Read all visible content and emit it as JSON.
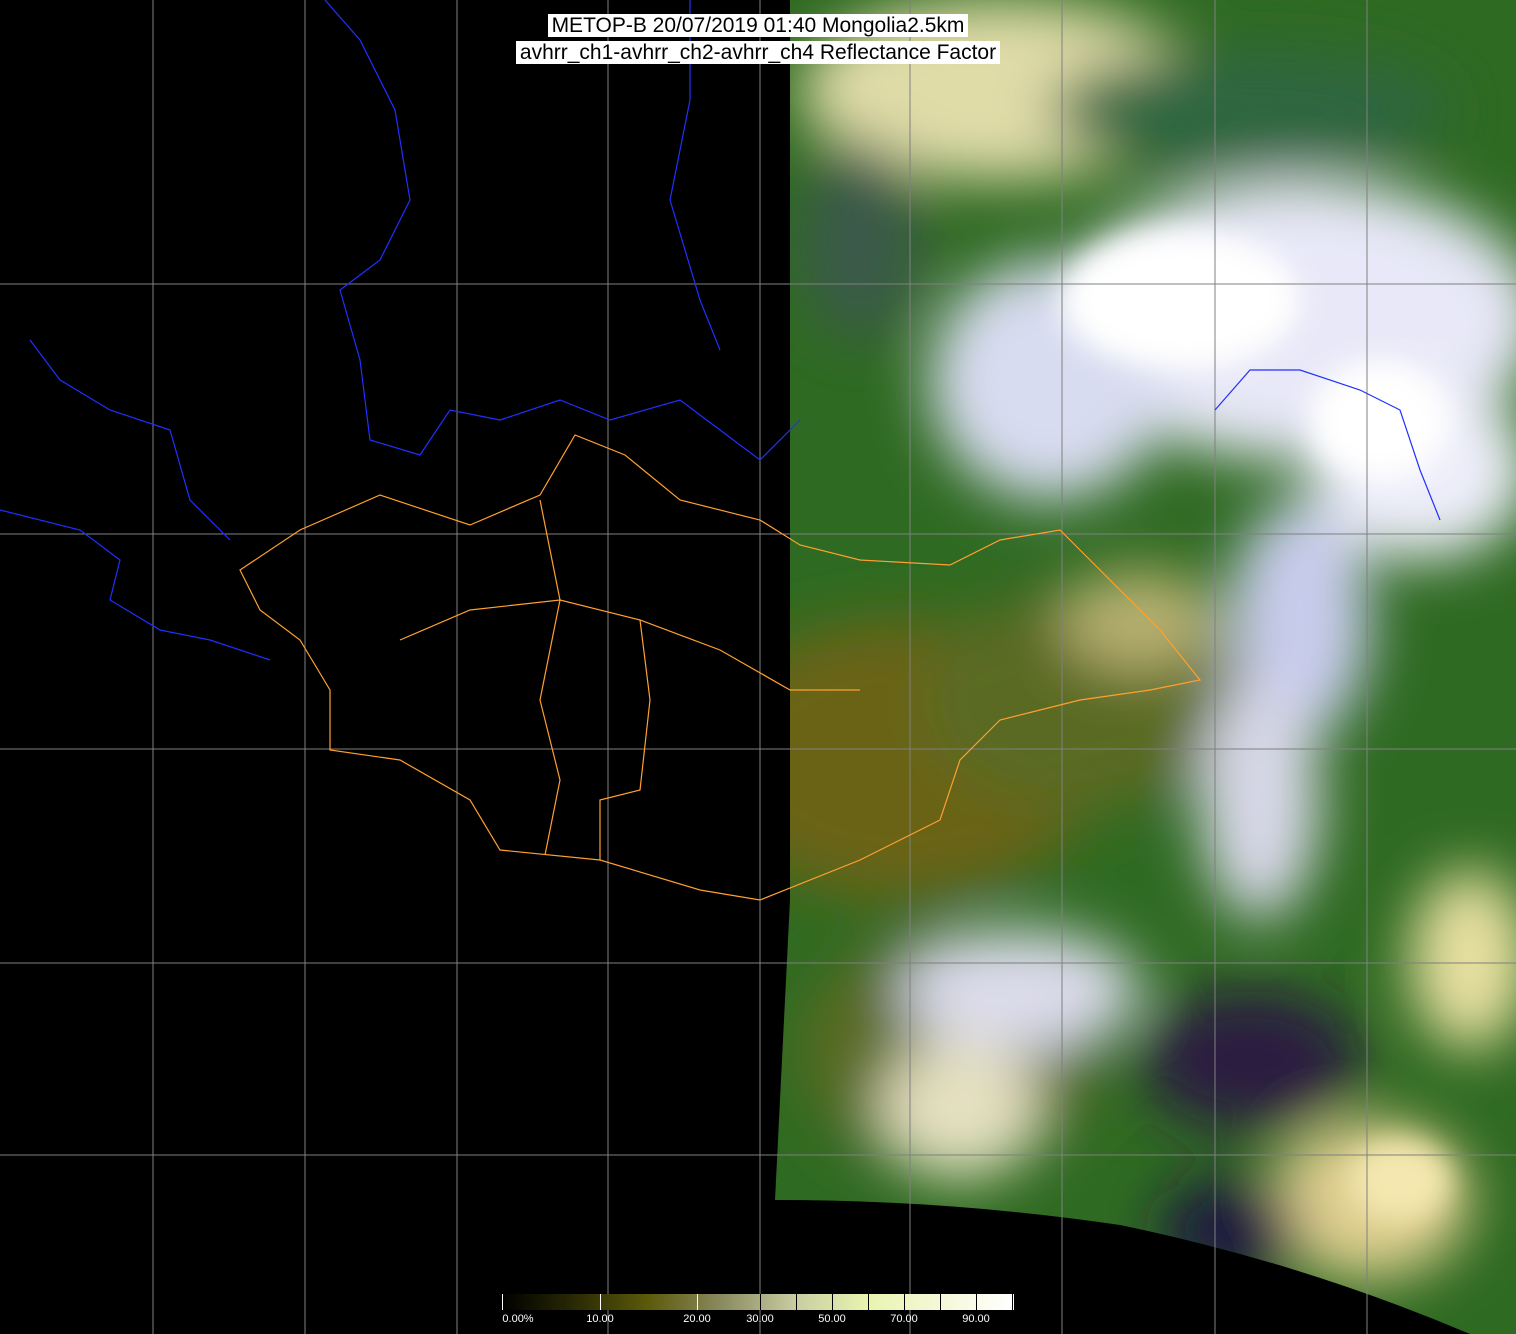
{
  "title": {
    "line1": "METOP-B 20/07/2019 01:40 Mongolia2.5km",
    "line2": "avhrr_ch1-avhrr_ch2-avhrr_ch4 Reflectance Factor"
  },
  "colorbar": {
    "labels": [
      "0.00%",
      "10.00",
      "20.00",
      "30.00",
      "50.00",
      "70.00",
      "90.00"
    ],
    "label_values": [
      0,
      10,
      20,
      30,
      50,
      70,
      90
    ],
    "tick_values": [
      0,
      10,
      20,
      30,
      40,
      50,
      60,
      70,
      80,
      90,
      100
    ],
    "range": [
      0,
      100
    ],
    "colors": [
      "#000000",
      "#2a2a05",
      "#5c5a0a",
      "#8a8a60",
      "#c8cca0",
      "#e8f4b0",
      "#f6f8d8",
      "#ffffff"
    ]
  },
  "colors": {
    "grid": "#808080",
    "rivers": "#2030ff",
    "lakes_coast": "#20a0a0",
    "admin_borders": "#ffa030",
    "background": "#000000"
  }
}
